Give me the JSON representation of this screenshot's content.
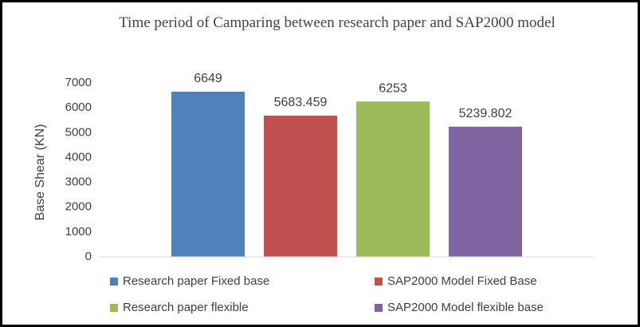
{
  "chart_data": {
    "type": "bar",
    "title": "Time period of Camparing between research paper and SAP2000 model",
    "y_label": "Base Shear (KN)",
    "categories": [
      null
    ],
    "series": [
      {
        "name": "Research paper Fixed base",
        "color": "#4f81bd",
        "values": [
          6649
        ]
      },
      {
        "name": "SAP2000 Model Fixed Base",
        "color": "#c0504d",
        "values": [
          5683.459
        ]
      },
      {
        "name": "Research paper flexible",
        "color": "#9bbb59",
        "values": [
          6253
        ]
      },
      {
        "name": "SAP2000 Model flexible base",
        "color": "#8064a2",
        "values": [
          5239.802
        ]
      }
    ],
    "ylim": [
      0,
      7000
    ],
    "yticks": [
      0,
      1000,
      2000,
      3000,
      4000,
      5000,
      6000,
      7000
    ],
    "grid": false,
    "data_labels": true,
    "legend": "bottom"
  }
}
